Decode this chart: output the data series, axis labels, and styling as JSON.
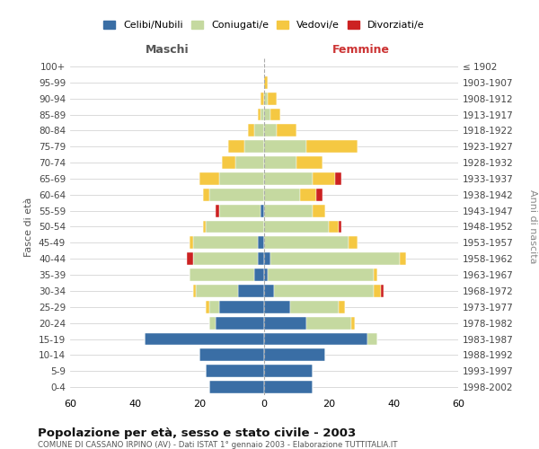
{
  "age_groups": [
    "0-4",
    "5-9",
    "10-14",
    "15-19",
    "20-24",
    "25-29",
    "30-34",
    "35-39",
    "40-44",
    "45-49",
    "50-54",
    "55-59",
    "60-64",
    "65-69",
    "70-74",
    "75-79",
    "80-84",
    "85-89",
    "90-94",
    "95-99",
    "100+"
  ],
  "birth_years": [
    "1998-2002",
    "1993-1997",
    "1988-1992",
    "1983-1987",
    "1978-1982",
    "1973-1977",
    "1968-1972",
    "1963-1967",
    "1958-1962",
    "1953-1957",
    "1948-1952",
    "1943-1947",
    "1938-1942",
    "1933-1937",
    "1928-1932",
    "1923-1927",
    "1918-1922",
    "1913-1917",
    "1908-1912",
    "1903-1907",
    "≤ 1902"
  ],
  "male": {
    "celibe": [
      17,
      18,
      20,
      37,
      15,
      14,
      8,
      3,
      2,
      2,
      0,
      1,
      0,
      0,
      0,
      0,
      0,
      0,
      0,
      0,
      0
    ],
    "coniugato": [
      0,
      0,
      0,
      0,
      2,
      3,
      13,
      20,
      20,
      20,
      18,
      13,
      17,
      14,
      9,
      6,
      3,
      1,
      0,
      0,
      0
    ],
    "vedovo": [
      0,
      0,
      0,
      0,
      0,
      1,
      1,
      0,
      0,
      1,
      1,
      0,
      2,
      6,
      4,
      5,
      2,
      1,
      1,
      0,
      0
    ],
    "divorziato": [
      0,
      0,
      0,
      0,
      0,
      0,
      0,
      0,
      2,
      0,
      0,
      1,
      0,
      0,
      0,
      0,
      0,
      0,
      0,
      0,
      0
    ]
  },
  "female": {
    "nubile": [
      15,
      15,
      19,
      32,
      13,
      8,
      3,
      1,
      2,
      0,
      0,
      0,
      0,
      0,
      0,
      0,
      0,
      0,
      0,
      0,
      0
    ],
    "coniugata": [
      0,
      0,
      0,
      3,
      14,
      15,
      31,
      33,
      40,
      26,
      20,
      15,
      11,
      15,
      10,
      13,
      4,
      2,
      1,
      0,
      0
    ],
    "vedova": [
      0,
      0,
      0,
      0,
      1,
      2,
      2,
      1,
      2,
      3,
      3,
      4,
      5,
      7,
      8,
      16,
      6,
      3,
      3,
      1,
      0
    ],
    "divorziata": [
      0,
      0,
      0,
      0,
      0,
      0,
      1,
      0,
      0,
      0,
      1,
      0,
      2,
      2,
      0,
      0,
      0,
      0,
      0,
      0,
      0
    ]
  },
  "colors": {
    "celibe": "#3a6ea5",
    "coniugato": "#c5d9a0",
    "vedovo": "#f5c842",
    "divorziato": "#cc2222"
  },
  "title": "Popolazione per età, sesso e stato civile - 2003",
  "subtitle": "COMUNE DI CASSANO IRPINO (AV) - Dati ISTAT 1° gennaio 2003 - Elaborazione TUTTITALIA.IT",
  "ylabel_left": "Fasce di età",
  "ylabel_right": "Anni di nascita",
  "xlabel_left": "Maschi",
  "xlabel_right": "Femmine",
  "xlim": 60,
  "legend_labels": [
    "Celibi/Nubili",
    "Coniugati/e",
    "Vedovi/e",
    "Divorziati/e"
  ],
  "background_color": "#ffffff",
  "grid_color": "#cccccc"
}
